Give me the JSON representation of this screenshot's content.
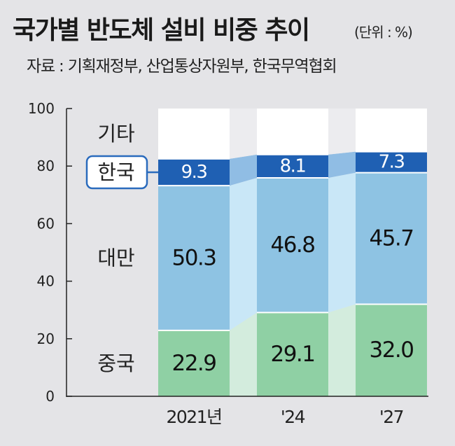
{
  "title": "국가별 반도체 설비 비중 추이",
  "unit": "(단위 : %)",
  "source": "자료 : 기획재정부, 산업통상자원부, 한국무역협회",
  "chart_data": {
    "type": "bar",
    "stacked": true,
    "categories": [
      "2021년",
      "'24",
      "'27"
    ],
    "series": [
      {
        "name": "중국",
        "values": [
          22.9,
          29.1,
          32.0
        ],
        "labels": [
          "22.9",
          "29.1",
          "32.0"
        ],
        "color": "#8fd0a4",
        "bridge": "#d3ecdd",
        "label_color": "#111111"
      },
      {
        "name": "대만",
        "values": [
          50.3,
          46.8,
          45.7
        ],
        "labels": [
          "50.3",
          "46.8",
          "45.7"
        ],
        "color": "#8ec3e3",
        "bridge": "#c9e7f7",
        "label_color": "#111111"
      },
      {
        "name": "한국",
        "values": [
          9.3,
          8.1,
          7.3
        ],
        "labels": [
          "9.3",
          "8.1",
          "7.3"
        ],
        "color": "#1f60b3",
        "bridge": "#90bde4",
        "label_color": "#ffffff"
      },
      {
        "name": "기타",
        "values": [
          17.5,
          16.0,
          15.0
        ],
        "labels": [
          "",
          "",
          ""
        ],
        "color": "#ffffff",
        "bridge": "#ececef",
        "label_color": "#111111"
      }
    ],
    "highlight_series": "한국",
    "ylim": [
      0,
      100
    ],
    "yticks": [
      "0",
      "20",
      "40",
      "60",
      "80",
      "100"
    ],
    "legend": "left, inline"
  }
}
